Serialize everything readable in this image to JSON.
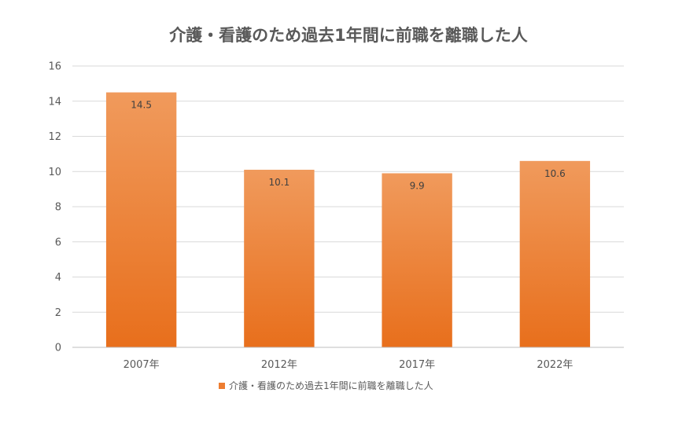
{
  "chart_data": {
    "type": "bar",
    "title": "介護・看護のため過去1年間に前職を離職した人",
    "categories": [
      "2007年",
      "2012年",
      "2017年",
      "2022年"
    ],
    "series": [
      {
        "name": "介護・看護のため過去1年間に前職を離職した人",
        "values": [
          14.5,
          10.1,
          9.9,
          10.6
        ],
        "data_labels": [
          "14.5",
          "10.1",
          "9.9",
          "10.6"
        ]
      }
    ],
    "xlabel": "",
    "ylabel": "",
    "ylim": [
      0,
      16
    ],
    "yticks": [
      "0",
      "2",
      "4",
      "6",
      "8",
      "10",
      "12",
      "14",
      "16"
    ],
    "grid": true,
    "legend_position": "bottom",
    "bar_color": "#ED7D31"
  }
}
